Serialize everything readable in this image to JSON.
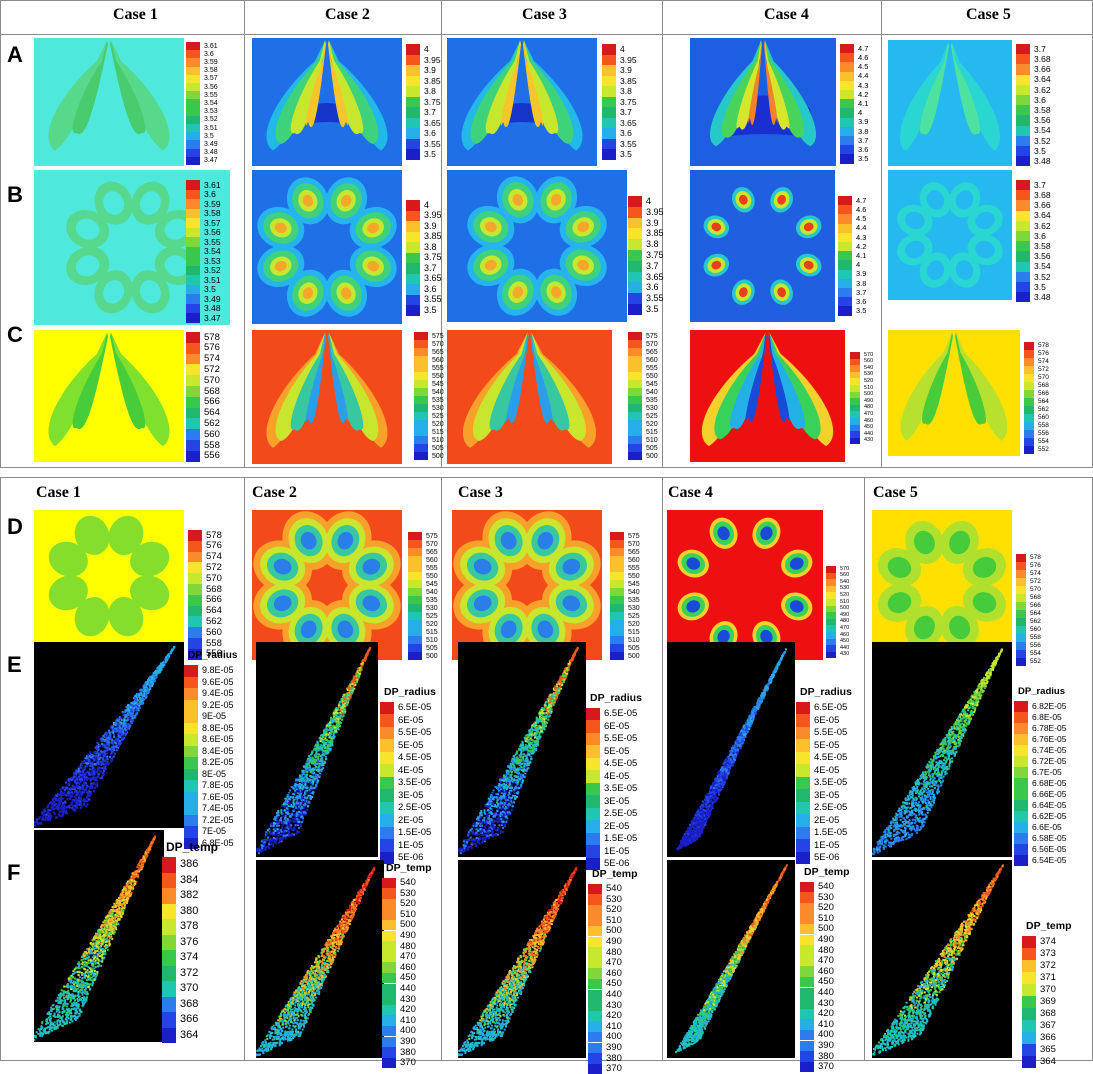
{
  "top_section": {
    "case_headers": [
      "Case 1",
      "Case 2",
      "Case 3",
      "Case 4",
      "Case 5"
    ],
    "rows": [
      "A",
      "B",
      "C"
    ]
  },
  "bottom_section": {
    "case_headers": [
      "Case 1",
      "Case 2",
      "Case 3",
      "Case 4",
      "Case 5"
    ],
    "rows": [
      "D",
      "E",
      "F"
    ]
  },
  "legends": {
    "A": [
      [
        "3.61",
        "3.6",
        "3.59",
        "3.58",
        "3.57",
        "3.56",
        "3.55",
        "3.54",
        "3.53",
        "3.52",
        "3.51",
        "3.5",
        "3.49",
        "3.48",
        "3.47"
      ],
      [
        "4",
        "3.95",
        "3.9",
        "3.85",
        "3.8",
        "3.75",
        "3.7",
        "3.65",
        "3.6",
        "3.55",
        "3.5"
      ],
      [
        "4",
        "3.95",
        "3.9",
        "3.85",
        "3.8",
        "3.75",
        "3.7",
        "3.65",
        "3.6",
        "3.55",
        "3.5"
      ],
      [
        "4.7",
        "4.6",
        "4.5",
        "4.4",
        "4.3",
        "4.2",
        "4.1",
        "4",
        "3.9",
        "3.8",
        "3.7",
        "3.6",
        "3.5"
      ],
      [
        "3.7",
        "3.68",
        "3.66",
        "3.64",
        "3.62",
        "3.6",
        "3.58",
        "3.56",
        "3.54",
        "3.52",
        "3.5",
        "3.48"
      ]
    ],
    "B": [
      [
        "3.61",
        "3.6",
        "3.59",
        "3.58",
        "3.57",
        "3.56",
        "3.55",
        "3.54",
        "3.53",
        "3.52",
        "3.51",
        "3.5",
        "3.49",
        "3.48",
        "3.47"
      ],
      [
        "4",
        "3.95",
        "3.9",
        "3.85",
        "3.8",
        "3.75",
        "3.7",
        "3.65",
        "3.6",
        "3.55",
        "3.5"
      ],
      [
        "4",
        "3.95",
        "3.9",
        "3.85",
        "3.8",
        "3.75",
        "3.7",
        "3.65",
        "3.6",
        "3.55",
        "3.5"
      ],
      [
        "4.7",
        "4.6",
        "4.5",
        "4.4",
        "4.3",
        "4.2",
        "4.1",
        "4",
        "3.9",
        "3.8",
        "3.7",
        "3.6",
        "3.5"
      ],
      [
        "3.7",
        "3.68",
        "3.66",
        "3.64",
        "3.62",
        "3.6",
        "3.58",
        "3.56",
        "3.54",
        "3.52",
        "3.5",
        "3.48"
      ]
    ],
    "C": [
      [
        "578",
        "576",
        "574",
        "572",
        "570",
        "568",
        "566",
        "564",
        "562",
        "560",
        "558",
        "556"
      ],
      [
        "575",
        "570",
        "565",
        "560",
        "555",
        "550",
        "545",
        "540",
        "535",
        "530",
        "525",
        "520",
        "515",
        "510",
        "505",
        "500"
      ],
      [
        "575",
        "570",
        "565",
        "560",
        "555",
        "550",
        "545",
        "540",
        "535",
        "530",
        "525",
        "520",
        "515",
        "510",
        "505",
        "500"
      ],
      [
        "570",
        "560",
        "540",
        "530",
        "520",
        "510",
        "500",
        "490",
        "480",
        "470",
        "460",
        "450",
        "440",
        "430"
      ],
      [
        "578",
        "576",
        "574",
        "572",
        "570",
        "568",
        "566",
        "564",
        "562",
        "560",
        "558",
        "556",
        "554",
        "552"
      ]
    ],
    "D": [
      [
        "578",
        "576",
        "574",
        "572",
        "570",
        "568",
        "566",
        "564",
        "562",
        "560",
        "558",
        "556"
      ],
      [
        "575",
        "570",
        "565",
        "560",
        "555",
        "550",
        "545",
        "540",
        "535",
        "530",
        "525",
        "520",
        "515",
        "510",
        "505",
        "500"
      ],
      [
        "575",
        "570",
        "565",
        "560",
        "555",
        "550",
        "545",
        "540",
        "535",
        "530",
        "525",
        "520",
        "515",
        "510",
        "505",
        "500"
      ],
      [
        "570",
        "560",
        "540",
        "530",
        "520",
        "510",
        "500",
        "490",
        "480",
        "470",
        "460",
        "450",
        "440",
        "430"
      ],
      [
        "578",
        "576",
        "574",
        "572",
        "570",
        "568",
        "566",
        "564",
        "562",
        "560",
        "558",
        "556",
        "554",
        "552"
      ]
    ],
    "E_title": "DP_radius",
    "E": [
      [
        "9.8E-05",
        "9.6E-05",
        "9.4E-05",
        "9.2E-05",
        "9E-05",
        "8.8E-05",
        "8.6E-05",
        "8.4E-05",
        "8.2E-05",
        "8E-05",
        "7.8E-05",
        "7.6E-05",
        "7.4E-05",
        "7.2E-05",
        "7E-05",
        "6.8E-05"
      ],
      [
        "6.5E-05",
        "6E-05",
        "5.5E-05",
        "5E-05",
        "4.5E-05",
        "4E-05",
        "3.5E-05",
        "3E-05",
        "2.5E-05",
        "2E-05",
        "1.5E-05",
        "1E-05",
        "5E-06"
      ],
      [
        "6.5E-05",
        "6E-05",
        "5.5E-05",
        "5E-05",
        "4.5E-05",
        "4E-05",
        "3.5E-05",
        "3E-05",
        "2.5E-05",
        "2E-05",
        "1.5E-05",
        "1E-05",
        "5E-06"
      ],
      [
        "6.5E-05",
        "6E-05",
        "5.5E-05",
        "5E-05",
        "4.5E-05",
        "4E-05",
        "3.5E-05",
        "3E-05",
        "2.5E-05",
        "2E-05",
        "1.5E-05",
        "1E-05",
        "5E-06"
      ],
      [
        "6.82E-05",
        "6.8E-05",
        "6.78E-05",
        "6.76E-05",
        "6.74E-05",
        "6.72E-05",
        "6.7E-05",
        "6.68E-05",
        "6.66E-05",
        "6.64E-05",
        "6.62E-05",
        "6.6E-05",
        "6.58E-05",
        "6.56E-05",
        "6.54E-05"
      ]
    ],
    "F_title": "DP_temp",
    "F": [
      [
        "386",
        "384",
        "382",
        "380",
        "378",
        "376",
        "374",
        "372",
        "370",
        "368",
        "366",
        "364"
      ],
      [
        "540",
        "530",
        "520",
        "510",
        "500",
        "490",
        "480",
        "470",
        "460",
        "450",
        "440",
        "430",
        "420",
        "410",
        "400",
        "390",
        "380",
        "370"
      ],
      [
        "540",
        "530",
        "520",
        "510",
        "500",
        "490",
        "480",
        "470",
        "460",
        "450",
        "440",
        "430",
        "420",
        "410",
        "400",
        "390",
        "380",
        "370"
      ],
      [
        "540",
        "530",
        "520",
        "510",
        "500",
        "490",
        "480",
        "470",
        "460",
        "450",
        "440",
        "430",
        "420",
        "410",
        "400",
        "390",
        "380",
        "370"
      ],
      [
        "374",
        "373",
        "372",
        "371",
        "370",
        "369",
        "368",
        "367",
        "366",
        "365",
        "364"
      ]
    ]
  },
  "colors": {
    "legend_scale": [
      "#d7191c",
      "#f4561c",
      "#fa8a2a",
      "#fcc02d",
      "#f7e52b",
      "#c8e82e",
      "#7fd83a",
      "#39c84b",
      "#1fb86e",
      "#1fc7b3",
      "#25aee8",
      "#2c7cf0",
      "#2544e6",
      "#1a1fc8"
    ]
  }
}
